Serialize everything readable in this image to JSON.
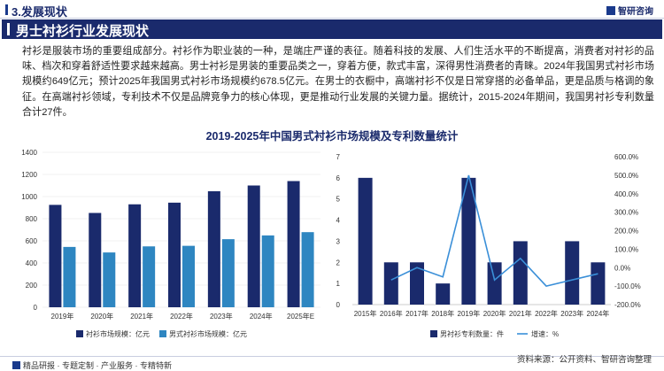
{
  "header": {
    "section_title": "3.发展现状",
    "brand": "智研咨询"
  },
  "banner": {
    "title": "男士衬衫行业发展现状"
  },
  "paragraph": "衬衫是服装市场的重要组成部分。衬衫作为职业装的一种，是端庄严谨的表征。随着科技的发展、人们生活水平的不断提高，消费者对衬衫的品味、档次和穿着舒适性要求越来越高。男士衬衫是男装的重要品类之一，穿着方便，款式丰富，深得男性消费者的青睐。2024年我国男式衬衫市场规模约649亿元；预计2025年我国男式衬衫市场规模约678.5亿元。在男士的衣橱中，高端衬衫不仅是日常穿搭的必备单品，更是品质与格调的象征。在高端衬衫领域，专利技术不仅是品牌竞争力的核心体现，更是推动行业发展的关键力量。据统计，2015-2024年期间，我国男衬衫专利数量合计27件。",
  "chart_title": "2019-2025年中国男式衬衫市场规模及专利数量统计",
  "chart_data": [
    {
      "type": "bar",
      "categories": [
        "2019年",
        "2020年",
        "2021年",
        "2022年",
        "2023年",
        "2024年",
        "2025年E"
      ],
      "series": [
        {
          "name": "衬衫市场规模：亿元",
          "color": "#1a2a6c",
          "values": [
            925,
            852,
            930,
            945,
            1048,
            1100,
            1140
          ]
        },
        {
          "name": "男式衬衫市场规模：亿元",
          "color": "#2e86c1",
          "values": [
            545,
            495,
            550,
            555,
            615,
            649,
            678.5
          ]
        }
      ],
      "ylim": [
        0,
        1400
      ],
      "yticks": [
        "0",
        "200",
        "400",
        "600",
        "800",
        "1000",
        "1200",
        "1400"
      ],
      "legend": "bottom"
    },
    {
      "type": "bar+line",
      "categories": [
        "2015年",
        "2016年",
        "2017年",
        "2018年",
        "2019年",
        "2020年",
        "2021年",
        "2022年",
        "2023年",
        "2024年"
      ],
      "series": [
        {
          "name": "男衬衫专利数量：件",
          "color": "#1a2a6c",
          "axis": "left",
          "values": [
            6,
            2,
            2,
            1,
            6,
            2,
            3,
            0,
            3,
            2
          ]
        },
        {
          "name": "增速：%",
          "color": "#3a8fd8",
          "axis": "right",
          "values": [
            null,
            -66.7,
            0,
            -50,
            500,
            -66.7,
            50,
            -100,
            null,
            -33.3
          ]
        }
      ],
      "ylim_left": [
        0,
        7
      ],
      "yticks_left": [
        "0",
        "1",
        "2",
        "3",
        "4",
        "5",
        "6",
        "7"
      ],
      "ylim_right": [
        -200,
        600
      ],
      "yticks_right": [
        "-200.0%",
        "-100.0%",
        "0.0%",
        "100.0%",
        "200.0%",
        "300.0%",
        "400.0%",
        "500.0%",
        "600.0%"
      ],
      "legend": "bottom"
    }
  ],
  "footer": {
    "left": "精品研报 · 专题定制 · 产业服务 · 专精特新",
    "right": "资料来源：公开资料、智研咨询整理"
  }
}
